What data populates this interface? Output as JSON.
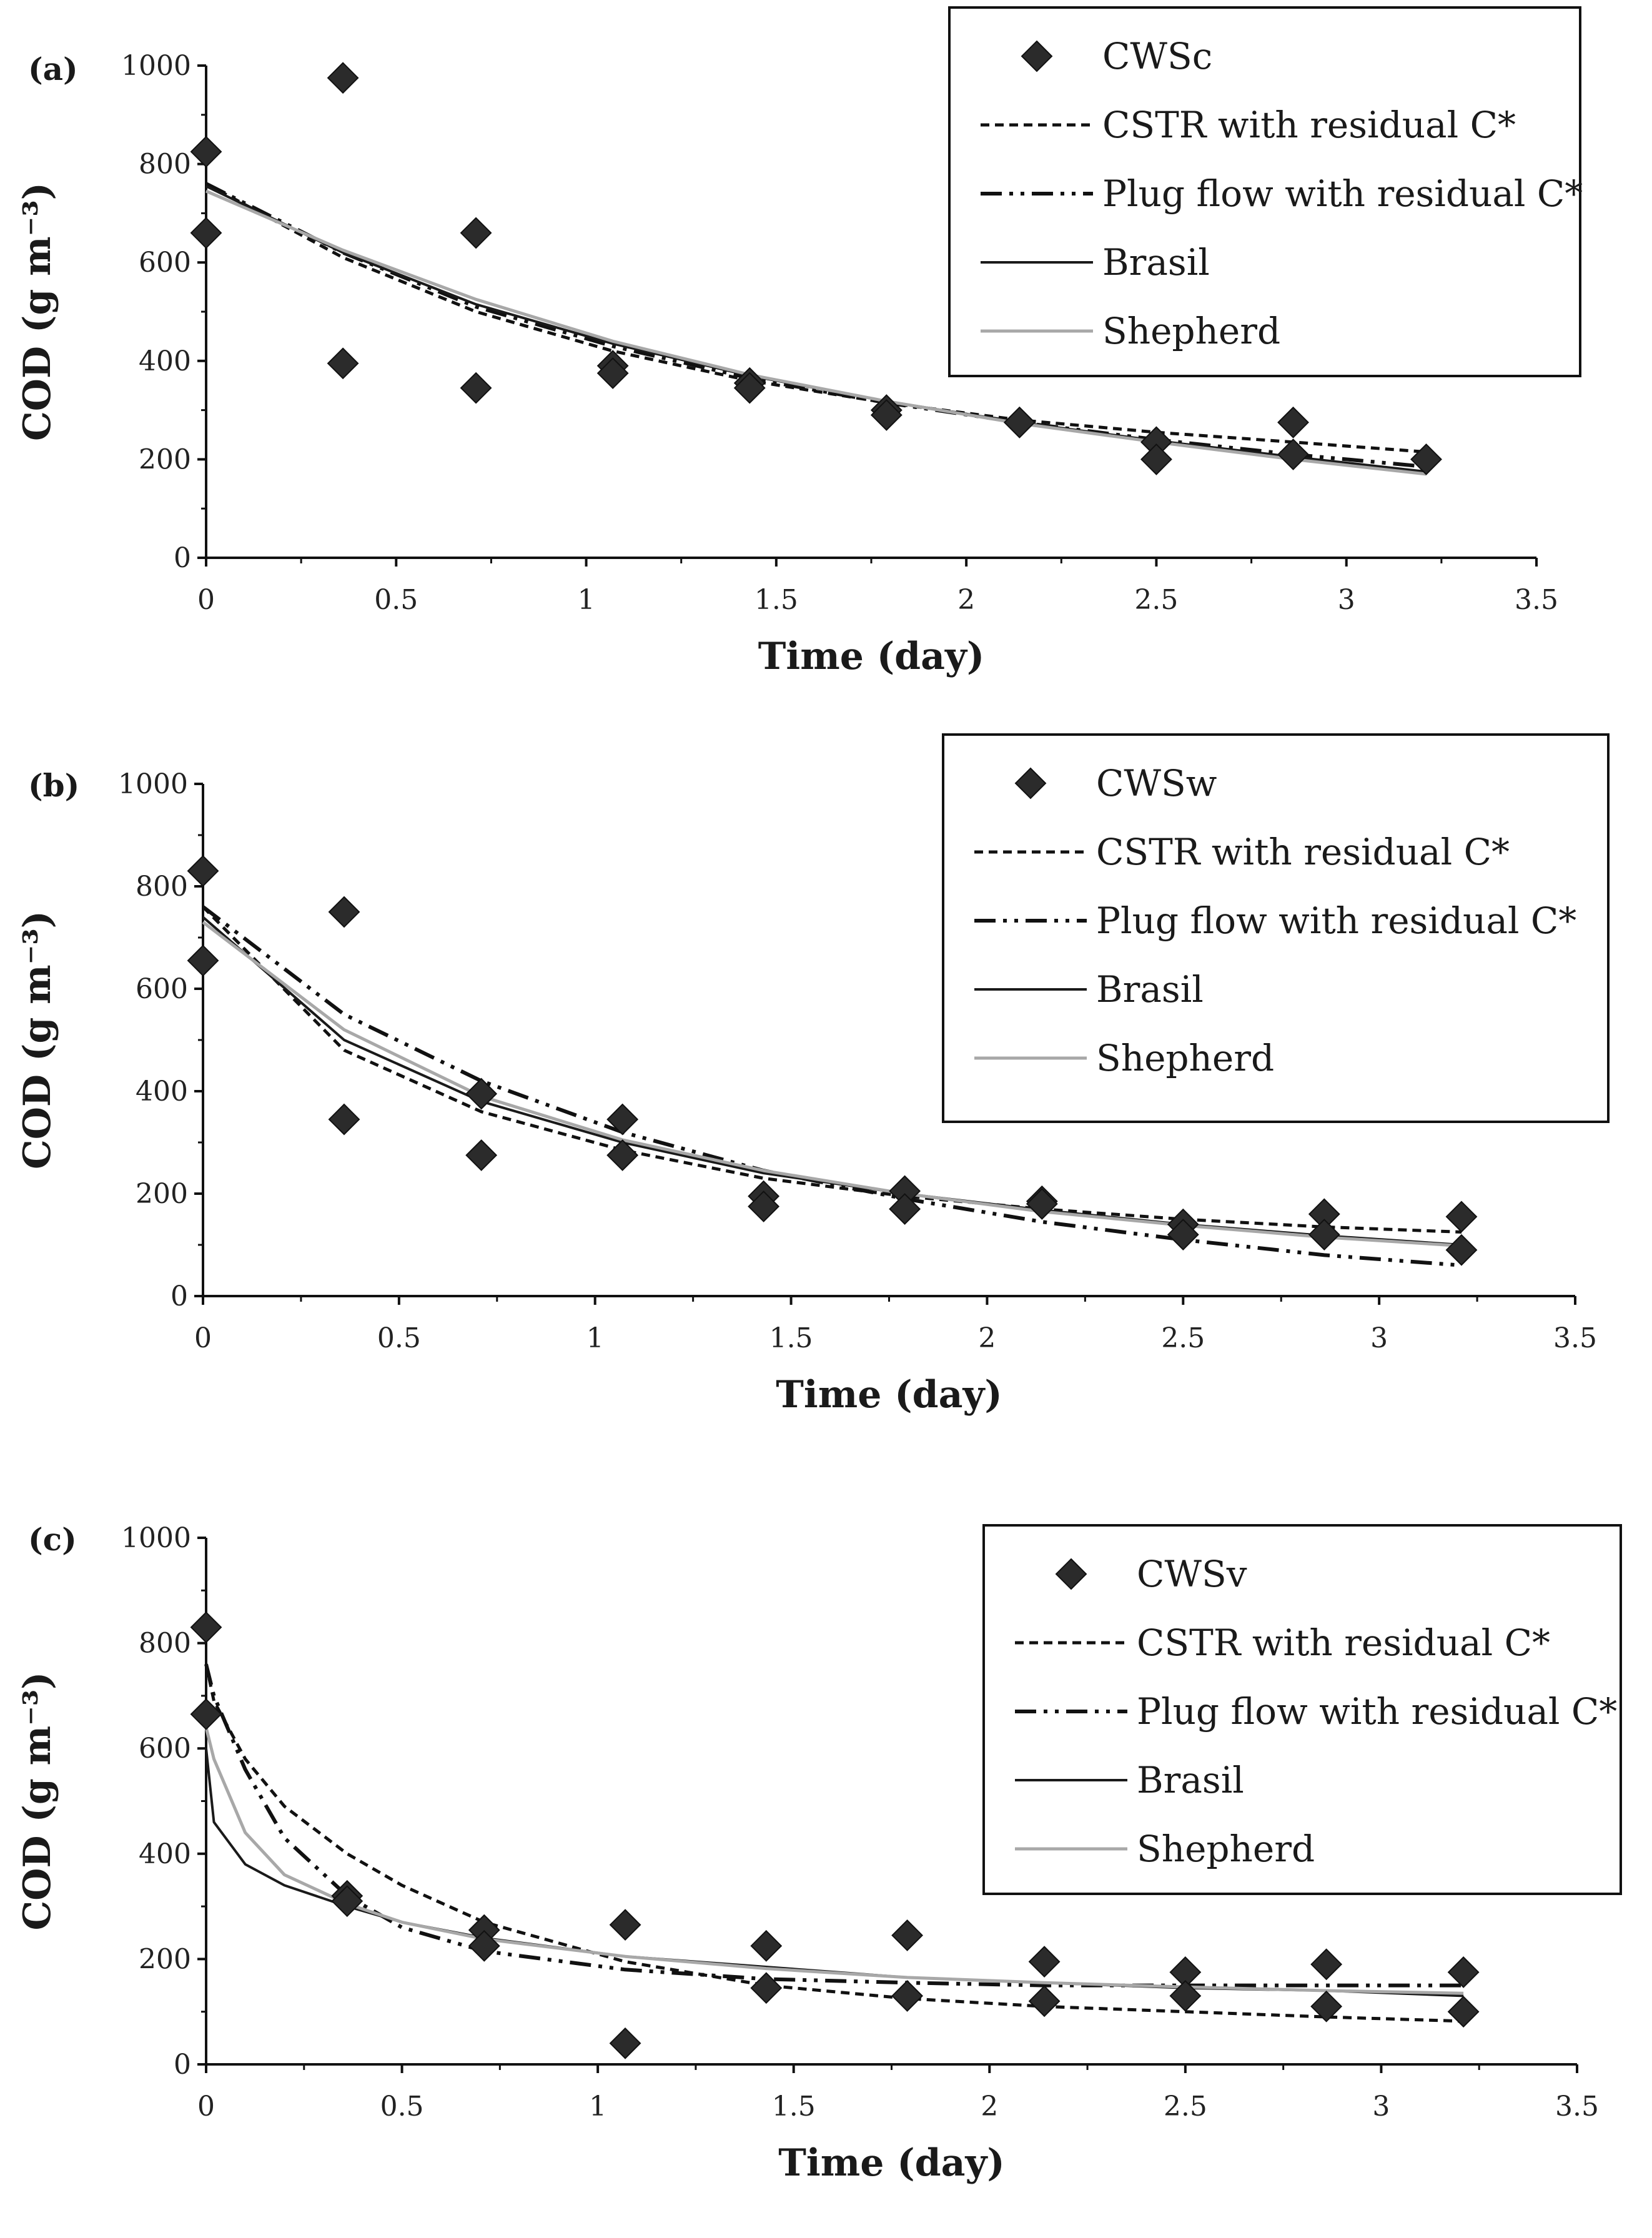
{
  "chart_data": [
    {
      "type": "scatter+line",
      "panel_label": "(a)",
      "xlabel": "Time (day)",
      "ylabel": "COD (g m⁻³)",
      "xlim": [
        0,
        3.5
      ],
      "ylim": [
        0,
        1000
      ],
      "xticks": [
        "0",
        "0.5",
        "1",
        "1.5",
        "2",
        "2.5",
        "3",
        "3.5"
      ],
      "yticks": [
        "0",
        "200",
        "400",
        "600",
        "800",
        "1000"
      ],
      "legend_position": "top-right",
      "observed": {
        "name": "CWSc",
        "points": [
          [
            0,
            825
          ],
          [
            0,
            660
          ],
          [
            0.36,
            975
          ],
          [
            0.36,
            395
          ],
          [
            0.71,
            660
          ],
          [
            0.71,
            345
          ],
          [
            1.07,
            390
          ],
          [
            1.07,
            375
          ],
          [
            1.43,
            355
          ],
          [
            1.43,
            345
          ],
          [
            1.79,
            300
          ],
          [
            1.79,
            290
          ],
          [
            2.14,
            275
          ],
          [
            2.14,
            275
          ],
          [
            2.5,
            235
          ],
          [
            2.5,
            200
          ],
          [
            2.86,
            275
          ],
          [
            2.86,
            210
          ],
          [
            3.21,
            200
          ]
        ]
      },
      "series": [
        {
          "name": "CSTR with residual C*",
          "style": "dashed",
          "x": [
            0,
            0.36,
            0.71,
            1.07,
            1.43,
            1.79,
            2.14,
            2.5,
            2.86,
            3.21
          ],
          "y": [
            760,
            610,
            500,
            420,
            360,
            315,
            280,
            255,
            235,
            215
          ]
        },
        {
          "name": "Plug flow with residual C*",
          "style": "dashdotdot",
          "x": [
            0,
            0.36,
            0.71,
            1.07,
            1.43,
            1.79,
            2.14,
            2.5,
            2.86,
            3.21
          ],
          "y": [
            760,
            620,
            510,
            430,
            365,
            315,
            275,
            240,
            210,
            185
          ]
        },
        {
          "name": "Brasil",
          "style": "solid",
          "x": [
            0,
            0.36,
            0.71,
            1.07,
            1.43,
            1.79,
            2.14,
            2.5,
            2.86,
            3.21
          ],
          "y": [
            755,
            620,
            515,
            435,
            370,
            318,
            275,
            238,
            205,
            175
          ]
        },
        {
          "name": "Shepherd",
          "style": "solid-gray",
          "x": [
            0,
            0.36,
            0.71,
            1.07,
            1.43,
            1.79,
            2.14,
            2.5,
            2.86,
            3.21
          ],
          "y": [
            745,
            625,
            525,
            440,
            372,
            318,
            273,
            235,
            200,
            170
          ]
        }
      ]
    },
    {
      "type": "scatter+line",
      "panel_label": "(b)",
      "xlabel": "Time (day)",
      "ylabel": "COD (g m⁻³)",
      "xlim": [
        0,
        3.5
      ],
      "ylim": [
        0,
        1000
      ],
      "xticks": [
        "0",
        "0.5",
        "1",
        "1.5",
        "2",
        "2.5",
        "3",
        "3.5"
      ],
      "yticks": [
        "0",
        "200",
        "400",
        "600",
        "800",
        "1000"
      ],
      "legend_position": "top-right",
      "observed": {
        "name": "CWSw",
        "points": [
          [
            0,
            830
          ],
          [
            0,
            655
          ],
          [
            0.36,
            750
          ],
          [
            0.36,
            345
          ],
          [
            0.71,
            395
          ],
          [
            0.71,
            275
          ],
          [
            1.07,
            345
          ],
          [
            1.07,
            275
          ],
          [
            1.43,
            195
          ],
          [
            1.43,
            175
          ],
          [
            1.79,
            205
          ],
          [
            1.79,
            170
          ],
          [
            2.14,
            185
          ],
          [
            2.14,
            180
          ],
          [
            2.5,
            140
          ],
          [
            2.5,
            120
          ],
          [
            2.86,
            160
          ],
          [
            2.86,
            120
          ],
          [
            3.21,
            155
          ],
          [
            3.21,
            90
          ]
        ]
      },
      "series": [
        {
          "name": "CSTR with residual C*",
          "style": "dashed",
          "x": [
            0,
            0.36,
            0.71,
            1.07,
            1.43,
            1.79,
            2.14,
            2.5,
            2.86,
            3.21
          ],
          "y": [
            760,
            480,
            360,
            285,
            230,
            195,
            170,
            150,
            135,
            125
          ]
        },
        {
          "name": "Plug flow with residual C*",
          "style": "dashdotdot",
          "x": [
            0,
            0.36,
            0.71,
            1.07,
            1.43,
            1.79,
            2.14,
            2.5,
            2.86,
            3.21
          ],
          "y": [
            760,
            550,
            420,
            320,
            245,
            190,
            145,
            110,
            80,
            60
          ]
        },
        {
          "name": "Brasil",
          "style": "solid",
          "x": [
            0,
            0.36,
            0.71,
            1.07,
            1.43,
            1.79,
            2.14,
            2.5,
            2.86,
            3.21
          ],
          "y": [
            740,
            500,
            380,
            300,
            240,
            200,
            168,
            140,
            118,
            100
          ]
        },
        {
          "name": "Shepherd",
          "style": "solid-gray",
          "x": [
            0,
            0.36,
            0.71,
            1.07,
            1.43,
            1.79,
            2.14,
            2.5,
            2.86,
            3.21
          ],
          "y": [
            730,
            520,
            390,
            305,
            245,
            200,
            165,
            138,
            115,
            98
          ]
        }
      ]
    },
    {
      "type": "scatter+line",
      "panel_label": "(c)",
      "xlabel": "Time (day)",
      "ylabel": "COD (g m⁻³)",
      "xlim": [
        0,
        3.5
      ],
      "ylim": [
        0,
        1000
      ],
      "xticks": [
        "0",
        "0.5",
        "1",
        "1.5",
        "2",
        "2.5",
        "3",
        "3.5"
      ],
      "yticks": [
        "0",
        "200",
        "400",
        "600",
        "800",
        "1000"
      ],
      "legend_position": "top-right",
      "observed": {
        "name": "CWSv",
        "points": [
          [
            0,
            830
          ],
          [
            0,
            665
          ],
          [
            0.36,
            320
          ],
          [
            0.36,
            310
          ],
          [
            0.71,
            255
          ],
          [
            0.71,
            225
          ],
          [
            1.07,
            265
          ],
          [
            1.07,
            40
          ],
          [
            1.43,
            225
          ],
          [
            1.43,
            145
          ],
          [
            1.79,
            245
          ],
          [
            1.79,
            130
          ],
          [
            2.14,
            195
          ],
          [
            2.14,
            120
          ],
          [
            2.5,
            175
          ],
          [
            2.5,
            130
          ],
          [
            2.86,
            190
          ],
          [
            2.86,
            110
          ],
          [
            3.21,
            175
          ],
          [
            3.21,
            100
          ]
        ]
      },
      "series": [
        {
          "name": "CSTR with residual C*",
          "style": "dashed",
          "x": [
            0,
            0.02,
            0.1,
            0.2,
            0.36,
            0.5,
            0.71,
            1.07,
            1.43,
            1.79,
            2.14,
            2.5,
            2.86,
            3.21
          ],
          "y": [
            760,
            690,
            580,
            490,
            400,
            340,
            270,
            195,
            150,
            125,
            110,
            100,
            90,
            82
          ]
        },
        {
          "name": "Plug flow with residual C*",
          "style": "dashdotdot",
          "x": [
            0,
            0.02,
            0.1,
            0.2,
            0.36,
            0.5,
            0.71,
            1.07,
            1.43,
            1.79,
            2.14,
            2.5,
            2.86,
            3.21
          ],
          "y": [
            760,
            700,
            560,
            430,
            320,
            260,
            215,
            180,
            162,
            155,
            150,
            150,
            150,
            150
          ]
        },
        {
          "name": "Brasil",
          "style": "solid",
          "x": [
            0,
            0.02,
            0.1,
            0.2,
            0.36,
            0.5,
            0.71,
            1.07,
            1.43,
            1.79,
            2.14,
            2.5,
            2.86,
            3.21
          ],
          "y": [
            600,
            460,
            380,
            340,
            300,
            270,
            240,
            205,
            185,
            165,
            155,
            145,
            140,
            130
          ]
        },
        {
          "name": "Shepherd",
          "style": "solid-gray",
          "x": [
            0,
            0.02,
            0.1,
            0.2,
            0.36,
            0.5,
            0.71,
            1.07,
            1.43,
            1.79,
            2.14,
            2.5,
            2.86,
            3.21
          ],
          "y": [
            640,
            580,
            440,
            360,
            305,
            270,
            238,
            205,
            182,
            165,
            155,
            147,
            140,
            135
          ]
        }
      ]
    }
  ]
}
